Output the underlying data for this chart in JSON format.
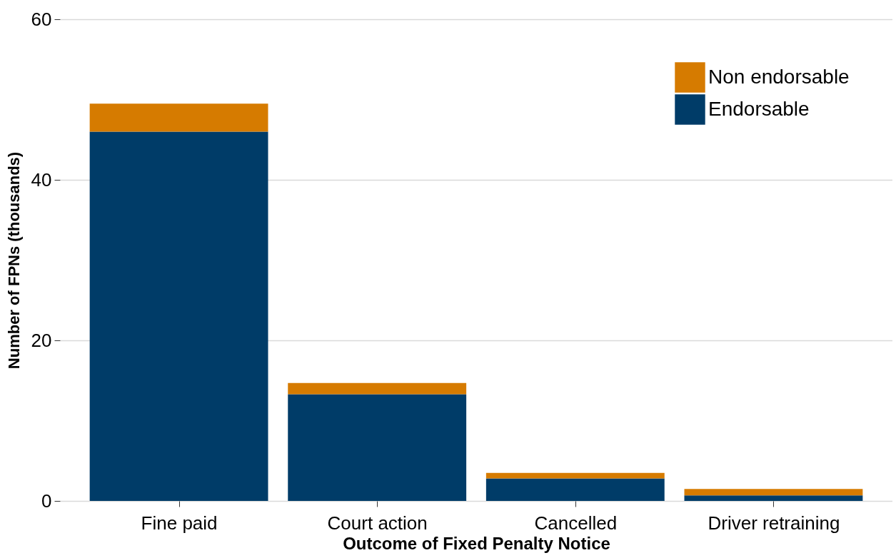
{
  "chart_data": {
    "type": "bar",
    "stacked": true,
    "xlabel": "Outcome of Fixed Penalty Notice",
    "ylabel": "Number of FPNs (thousands)",
    "categories": [
      "Fine paid",
      "Court action",
      "Cancelled",
      "Driver retraining"
    ],
    "series": [
      {
        "name": "Endorsable",
        "color": "#003c68",
        "values": [
          46.0,
          13.3,
          2.8,
          0.7
        ]
      },
      {
        "name": "Non endorsable",
        "color": "#d67b00",
        "values": [
          3.5,
          1.4,
          0.7,
          0.8
        ]
      }
    ],
    "ylim": [
      0,
      60
    ],
    "yticks": [
      0,
      20,
      40,
      60
    ],
    "grid": "y",
    "legend": "top right"
  }
}
